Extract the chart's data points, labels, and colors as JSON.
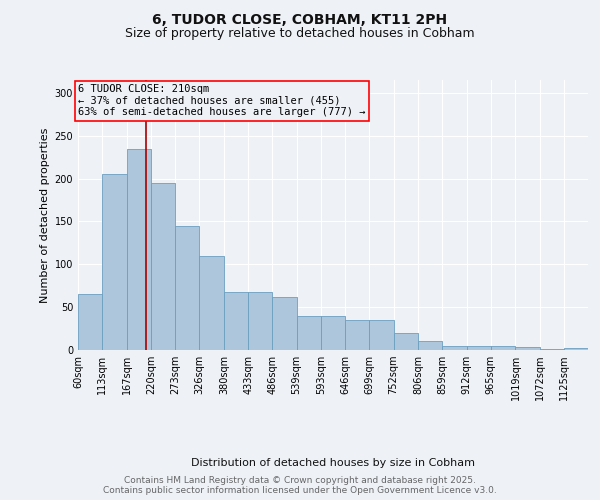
{
  "title1": "6, TUDOR CLOSE, COBHAM, KT11 2PH",
  "title2": "Size of property relative to detached houses in Cobham",
  "xlabel": "Distribution of detached houses by size in Cobham",
  "ylabel": "Number of detached properties",
  "footnote1": "Contains HM Land Registry data © Crown copyright and database right 2025.",
  "footnote2": "Contains public sector information licensed under the Open Government Licence v3.0.",
  "annotation_line1": "6 TUDOR CLOSE: 210sqm",
  "annotation_line2": "← 37% of detached houses are smaller (455)",
  "annotation_line3": "63% of semi-detached houses are larger (777) →",
  "bar_color": "#aec6dc",
  "bar_edge_color": "#6a9fc0",
  "vline_color": "#aa0000",
  "vline_x": 210,
  "bins": [
    60,
    113,
    167,
    220,
    273,
    326,
    380,
    433,
    486,
    539,
    593,
    646,
    699,
    752,
    806,
    859,
    912,
    965,
    1019,
    1072,
    1125
  ],
  "counts": [
    65,
    205,
    235,
    195,
    145,
    110,
    68,
    68,
    62,
    40,
    40,
    35,
    35,
    20,
    10,
    5,
    5,
    5,
    4,
    1,
    2
  ],
  "ylim": [
    0,
    315
  ],
  "yticks": [
    0,
    50,
    100,
    150,
    200,
    250,
    300
  ],
  "background_color": "#eef2f7",
  "grid_color": "#ffffff",
  "title_fontsize": 10,
  "subtitle_fontsize": 9,
  "annotation_fontsize": 7.5,
  "tick_fontsize": 7,
  "ylabel_fontsize": 8,
  "xlabel_fontsize": 8,
  "footnote_fontsize": 6.5
}
